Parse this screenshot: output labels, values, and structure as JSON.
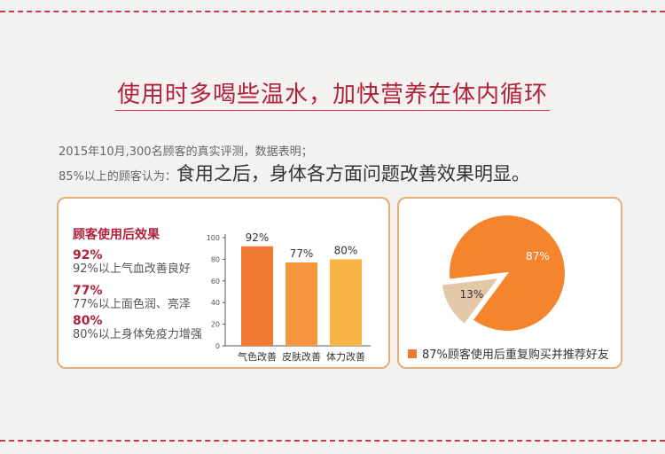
{
  "headline": "使用时多喝些温水，加快营养在体内循环",
  "intro": {
    "line1": "2015年10月,300名顾客的真实评测，数据表明；",
    "line2_prefix": "85%以上的顾客认为：",
    "line2_main": "食用之后，身体各方面问题改善效果明显。"
  },
  "effects": {
    "title": "顾客使用后效果",
    "items": [
      {
        "pct": "92%",
        "desc": "92%以上气血改善良好"
      },
      {
        "pct": "77%",
        "desc": "77%以上面色润、亮泽"
      },
      {
        "pct": "80%",
        "desc": "80%以上身体免疫力增强"
      }
    ]
  },
  "chart_data": [
    {
      "type": "bar",
      "categories": [
        "气色改善",
        "皮肤改善",
        "体力改善"
      ],
      "values": [
        92,
        77,
        80
      ],
      "data_labels": [
        "92%",
        "77%",
        "80%"
      ],
      "yticks": [
        "0",
        "20",
        "40",
        "60",
        "80",
        "100"
      ],
      "ylim": [
        0,
        100
      ],
      "colors": [
        "#f07a32",
        "#f5963e",
        "#f8b546"
      ],
      "grid": false
    },
    {
      "type": "pie",
      "values": [
        87,
        13
      ],
      "data_labels": [
        "87%",
        "13%"
      ],
      "colors": [
        "#f4852c",
        "#e3c8a8"
      ],
      "legend": "87%顾客使用后重复购买并推荐好友",
      "legend_position": "bottom"
    }
  ]
}
